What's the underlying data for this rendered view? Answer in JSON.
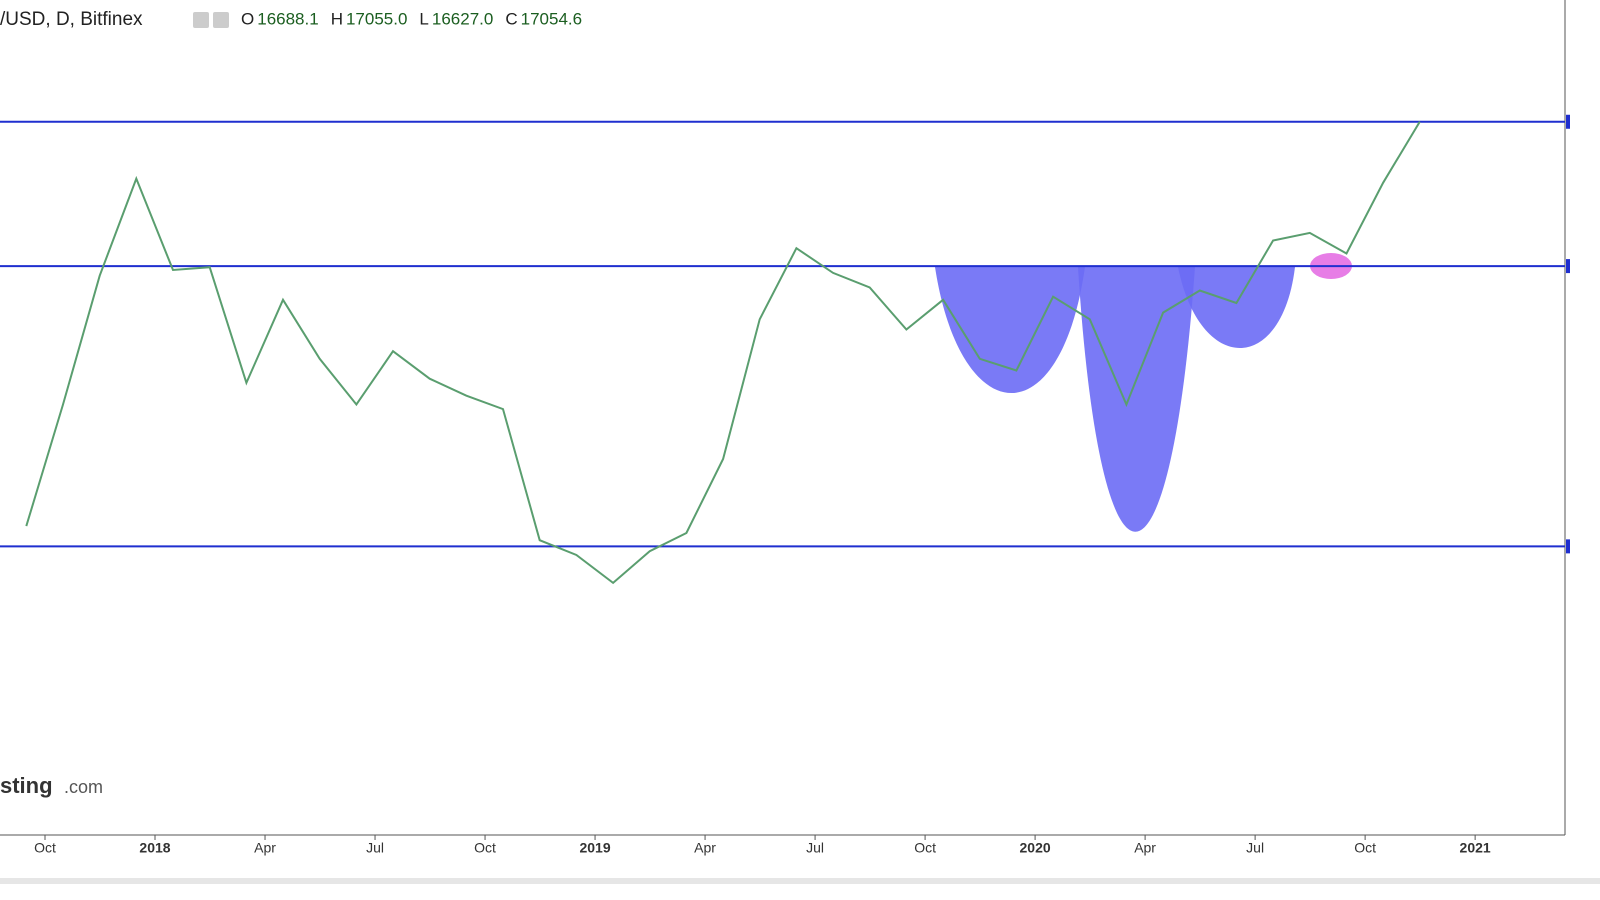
{
  "header": {
    "symbol": "/USD, D, Bitfinex",
    "ohlc": [
      {
        "key": "O",
        "value": "16688.1"
      },
      {
        "key": "H",
        "value": "17055.0"
      },
      {
        "key": "L",
        "value": "16627.0"
      },
      {
        "key": "C",
        "value": "17054.6"
      }
    ]
  },
  "watermark": {
    "name": "sting",
    "suffix": ".com"
  },
  "chart_data": {
    "type": "line",
    "log_scale": true,
    "color": "#5a9e6f",
    "x": [
      "2017-09",
      "2017-10",
      "2017-11",
      "2017-12",
      "2018-01",
      "2018-02",
      "2018-03",
      "2018-04",
      "2018-05",
      "2018-06",
      "2018-07",
      "2018-08",
      "2018-09",
      "2018-10",
      "2018-11",
      "2018-12",
      "2019-01",
      "2019-02",
      "2019-03",
      "2019-04",
      "2019-05",
      "2019-06",
      "2019-07",
      "2019-08",
      "2019-09",
      "2019-10",
      "2019-11",
      "2019-12",
      "2020-01",
      "2020-02",
      "2020-03",
      "2020-04",
      "2020-05",
      "2020-06",
      "2020-07",
      "2020-08",
      "2020-09",
      "2020-10",
      "2020-11"
    ],
    "values": [
      4200,
      6400,
      10000,
      14000,
      10200,
      10300,
      6900,
      9200,
      7500,
      6400,
      7700,
      7000,
      6600,
      6300,
      4000,
      3800,
      3450,
      3850,
      4100,
      5300,
      8600,
      11000,
      10100,
      9600,
      8300,
      9200,
      7500,
      7200,
      9300,
      8600,
      6400,
      8800,
      9500,
      9100,
      11300,
      11600,
      10800,
      13800,
      17054.6
    ],
    "ylim": [
      1440,
      26000
    ],
    "xticks": [
      {
        "value": "2017-10",
        "label": "Oct"
      },
      {
        "value": "2018-01",
        "label": "2018"
      },
      {
        "value": "2018-04",
        "label": "Apr"
      },
      {
        "value": "2018-07",
        "label": "Jul"
      },
      {
        "value": "2018-10",
        "label": "Oct"
      },
      {
        "value": "2019-01",
        "label": "2019"
      },
      {
        "value": "2019-04",
        "label": "Apr"
      },
      {
        "value": "2019-07",
        "label": "Jul"
      },
      {
        "value": "2019-10",
        "label": "Oct"
      },
      {
        "value": "2020-01",
        "label": "2020"
      },
      {
        "value": "2020-04",
        "label": "Apr"
      },
      {
        "value": "2020-07",
        "label": "Jul"
      },
      {
        "value": "2020-10",
        "label": "Oct"
      },
      {
        "value": "2021-01",
        "label": "2021"
      }
    ],
    "hlines": [
      17050,
      10340,
      3915
    ],
    "hline_color": "#1f2fcf"
  }
}
